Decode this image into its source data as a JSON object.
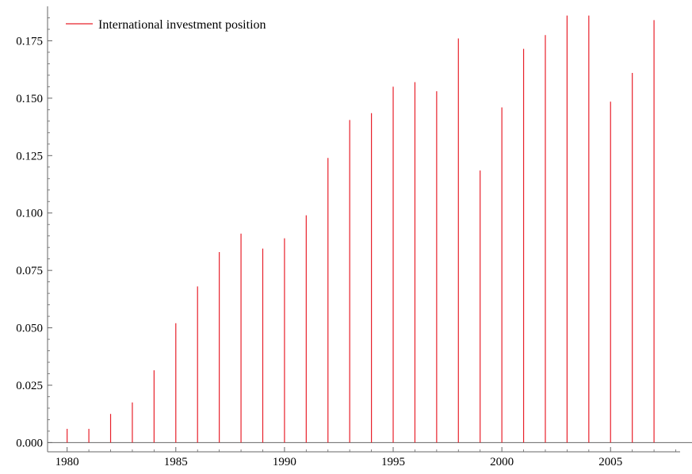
{
  "chart_data": {
    "type": "bar",
    "style": "needle",
    "series": [
      {
        "name": "International investment position",
        "color": "#e8202a",
        "x": [
          1980,
          1981,
          1982,
          1983,
          1984,
          1985,
          1986,
          1987,
          1988,
          1989,
          1990,
          1991,
          1992,
          1993,
          1994,
          1995,
          1996,
          1997,
          1998,
          1999,
          2000,
          2001,
          2002,
          2003,
          2004,
          2005,
          2006,
          2007
        ],
        "values": [
          0.006,
          0.006,
          0.0125,
          0.0175,
          0.0315,
          0.052,
          0.068,
          0.083,
          0.091,
          0.0845,
          0.089,
          0.099,
          0.124,
          0.1405,
          0.1435,
          0.155,
          0.157,
          0.153,
          0.176,
          0.1185,
          0.146,
          0.1715,
          0.1775,
          0.186,
          0.186,
          0.1485,
          0.161,
          0.184
        ]
      }
    ],
    "xlim": [
      1979.1,
      2008.2
    ],
    "ylim": [
      -0.004,
      0.19
    ],
    "xticks": [
      1980,
      1985,
      1990,
      1995,
      2000,
      2005
    ],
    "yticks": [
      "0.000",
      "0.025",
      "0.050",
      "0.075",
      "0.100",
      "0.125",
      "0.150",
      "0.175"
    ],
    "xlabel": "",
    "ylabel": "",
    "title": "",
    "grid": false,
    "legend_position": "top-left",
    "axis_color": "#666666"
  }
}
